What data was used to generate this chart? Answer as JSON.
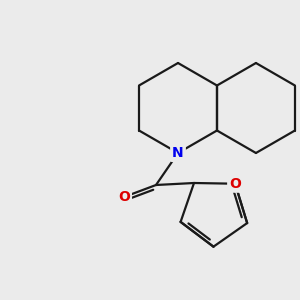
{
  "background_color": "#ebebeb",
  "line_color": "#1a1a1a",
  "N_color": "#0000ee",
  "O_color": "#dd0000",
  "bond_width": 1.6,
  "figsize": [
    3.0,
    3.0
  ],
  "dpi": 100,
  "font_size_atoms": 10,
  "xlim": [
    0,
    300
  ],
  "ylim": [
    0,
    300
  ]
}
